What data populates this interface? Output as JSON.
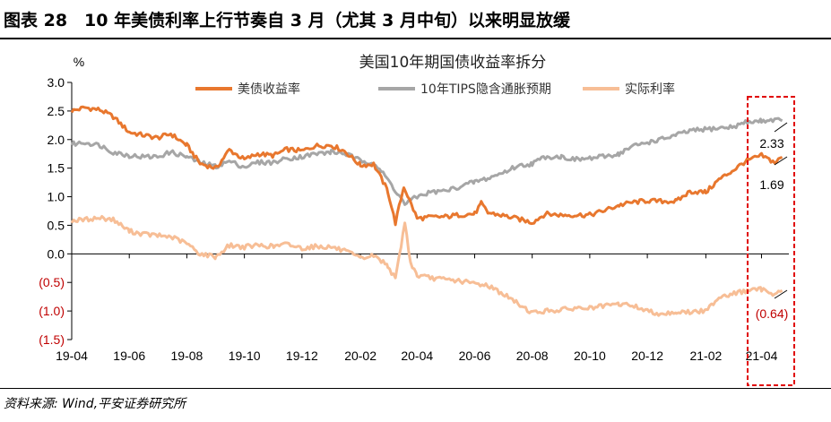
{
  "header": {
    "title": "图表 28　10 年美债利率上行节奏自 3 月（尤其 3 月中旬）以来明显放缓"
  },
  "footer": {
    "source": "资料来源: Wind,平安证券研究所"
  },
  "colors": {
    "nominal": "#E8772E",
    "breakeven": "#A6A6A6",
    "real": "#F7BE96",
    "negative_tick": "#C00000",
    "highlight_box": "#E00000"
  },
  "chart_data": {
    "type": "line",
    "title": "美国10年期国债收益率拆分",
    "ylabel": "%",
    "ylim": [
      -1.5,
      3.0
    ],
    "yticks": [
      3.0,
      2.5,
      2.0,
      1.5,
      1.0,
      0.5,
      0.0,
      -0.5,
      -1.0,
      -1.5
    ],
    "ytick_labels": [
      "3.0",
      "2.5",
      "2.0",
      "1.5",
      "1.0",
      "0.5",
      "0.0",
      "(0.5)",
      "(1.0)",
      "(1.5)"
    ],
    "xlim": [
      "2019-04-01",
      "2021-04-30"
    ],
    "xticks": [
      "2019-04-01",
      "2019-06-01",
      "2019-08-01",
      "2019-10-01",
      "2019-12-01",
      "2020-02-01",
      "2020-04-01",
      "2020-06-01",
      "2020-08-01",
      "2020-10-01",
      "2020-12-01",
      "2021-02-01",
      "2021-04-01"
    ],
    "xtick_labels": [
      "19-04",
      "19-06",
      "19-08",
      "19-10",
      "19-12",
      "20-02",
      "20-04",
      "20-06",
      "20-08",
      "20-10",
      "20-12",
      "21-02",
      "21-04"
    ],
    "legend": "top",
    "grid": false,
    "series": [
      {
        "name": "美债收益率",
        "color": "#E8772E",
        "points": [
          [
            "2019-04-01",
            2.5
          ],
          [
            "2019-04-15",
            2.56
          ],
          [
            "2019-05-01",
            2.52
          ],
          [
            "2019-05-15",
            2.4
          ],
          [
            "2019-06-01",
            2.13
          ],
          [
            "2019-06-15",
            2.08
          ],
          [
            "2019-07-01",
            2.03
          ],
          [
            "2019-07-15",
            2.1
          ],
          [
            "2019-08-01",
            1.9
          ],
          [
            "2019-08-15",
            1.58
          ],
          [
            "2019-09-01",
            1.5
          ],
          [
            "2019-09-15",
            1.82
          ],
          [
            "2019-10-01",
            1.65
          ],
          [
            "2019-10-15",
            1.75
          ],
          [
            "2019-11-01",
            1.72
          ],
          [
            "2019-11-15",
            1.83
          ],
          [
            "2019-12-01",
            1.8
          ],
          [
            "2019-12-15",
            1.89
          ],
          [
            "2020-01-01",
            1.9
          ],
          [
            "2020-01-15",
            1.8
          ],
          [
            "2020-02-01",
            1.55
          ],
          [
            "2020-02-15",
            1.57
          ],
          [
            "2020-03-01",
            1.1
          ],
          [
            "2020-03-09",
            0.54
          ],
          [
            "2020-03-18",
            1.18
          ],
          [
            "2020-04-01",
            0.62
          ],
          [
            "2020-04-15",
            0.64
          ],
          [
            "2020-05-01",
            0.65
          ],
          [
            "2020-05-15",
            0.68
          ],
          [
            "2020-06-01",
            0.7
          ],
          [
            "2020-06-08",
            0.88
          ],
          [
            "2020-06-15",
            0.72
          ],
          [
            "2020-07-01",
            0.67
          ],
          [
            "2020-07-15",
            0.62
          ],
          [
            "2020-08-01",
            0.55
          ],
          [
            "2020-08-15",
            0.7
          ],
          [
            "2020-09-01",
            0.68
          ],
          [
            "2020-09-15",
            0.68
          ],
          [
            "2020-10-01",
            0.68
          ],
          [
            "2020-10-15",
            0.75
          ],
          [
            "2020-11-01",
            0.85
          ],
          [
            "2020-11-15",
            0.9
          ],
          [
            "2020-12-01",
            0.93
          ],
          [
            "2020-12-15",
            0.92
          ],
          [
            "2021-01-01",
            0.92
          ],
          [
            "2021-01-15",
            1.09
          ],
          [
            "2021-02-01",
            1.08
          ],
          [
            "2021-02-15",
            1.3
          ],
          [
            "2021-03-01",
            1.45
          ],
          [
            "2021-03-15",
            1.62
          ],
          [
            "2021-04-01",
            1.72
          ],
          [
            "2021-04-15",
            1.6
          ],
          [
            "2021-04-23",
            1.69
          ]
        ]
      },
      {
        "name": "10年TIPS隐含通胀预期",
        "color": "#A6A6A6",
        "points": [
          [
            "2019-04-01",
            1.92
          ],
          [
            "2019-04-15",
            1.95
          ],
          [
            "2019-05-01",
            1.9
          ],
          [
            "2019-05-15",
            1.78
          ],
          [
            "2019-06-01",
            1.72
          ],
          [
            "2019-06-15",
            1.7
          ],
          [
            "2019-07-01",
            1.7
          ],
          [
            "2019-07-15",
            1.78
          ],
          [
            "2019-08-01",
            1.7
          ],
          [
            "2019-08-15",
            1.6
          ],
          [
            "2019-09-01",
            1.53
          ],
          [
            "2019-09-15",
            1.62
          ],
          [
            "2019-10-01",
            1.52
          ],
          [
            "2019-10-15",
            1.6
          ],
          [
            "2019-11-01",
            1.6
          ],
          [
            "2019-11-15",
            1.67
          ],
          [
            "2019-12-01",
            1.7
          ],
          [
            "2019-12-15",
            1.75
          ],
          [
            "2020-01-01",
            1.78
          ],
          [
            "2020-01-15",
            1.76
          ],
          [
            "2020-02-01",
            1.63
          ],
          [
            "2020-02-15",
            1.6
          ],
          [
            "2020-03-01",
            1.3
          ],
          [
            "2020-03-19",
            0.87
          ],
          [
            "2020-04-01",
            1.0
          ],
          [
            "2020-04-15",
            1.08
          ],
          [
            "2020-05-01",
            1.1
          ],
          [
            "2020-05-15",
            1.17
          ],
          [
            "2020-06-01",
            1.26
          ],
          [
            "2020-06-15",
            1.32
          ],
          [
            "2020-07-01",
            1.42
          ],
          [
            "2020-07-15",
            1.53
          ],
          [
            "2020-08-01",
            1.58
          ],
          [
            "2020-08-15",
            1.7
          ],
          [
            "2020-09-01",
            1.7
          ],
          [
            "2020-09-15",
            1.65
          ],
          [
            "2020-10-01",
            1.67
          ],
          [
            "2020-10-15",
            1.7
          ],
          [
            "2020-11-01",
            1.75
          ],
          [
            "2020-11-15",
            1.88
          ],
          [
            "2020-12-01",
            1.95
          ],
          [
            "2020-12-15",
            2.0
          ],
          [
            "2021-01-01",
            2.08
          ],
          [
            "2021-01-15",
            2.15
          ],
          [
            "2021-02-01",
            2.18
          ],
          [
            "2021-02-15",
            2.2
          ],
          [
            "2021-03-01",
            2.22
          ],
          [
            "2021-03-15",
            2.3
          ],
          [
            "2021-04-01",
            2.33
          ],
          [
            "2021-04-15",
            2.35
          ],
          [
            "2021-04-23",
            2.33
          ]
        ]
      },
      {
        "name": "实际利率",
        "color": "#F7BE96",
        "points": [
          [
            "2019-04-01",
            0.58
          ],
          [
            "2019-04-15",
            0.6
          ],
          [
            "2019-05-01",
            0.63
          ],
          [
            "2019-05-15",
            0.6
          ],
          [
            "2019-06-01",
            0.4
          ],
          [
            "2019-06-15",
            0.35
          ],
          [
            "2019-07-01",
            0.32
          ],
          [
            "2019-07-15",
            0.3
          ],
          [
            "2019-08-01",
            0.18
          ],
          [
            "2019-08-15",
            0.0
          ],
          [
            "2019-09-01",
            -0.05
          ],
          [
            "2019-09-15",
            0.15
          ],
          [
            "2019-10-01",
            0.12
          ],
          [
            "2019-10-15",
            0.15
          ],
          [
            "2019-11-01",
            0.13
          ],
          [
            "2019-11-15",
            0.17
          ],
          [
            "2019-12-01",
            0.1
          ],
          [
            "2019-12-15",
            0.13
          ],
          [
            "2020-01-01",
            0.12
          ],
          [
            "2020-01-15",
            0.05
          ],
          [
            "2020-02-01",
            -0.08
          ],
          [
            "2020-02-15",
            -0.03
          ],
          [
            "2020-03-01",
            -0.2
          ],
          [
            "2020-03-09",
            -0.45
          ],
          [
            "2020-03-19",
            0.55
          ],
          [
            "2020-03-25",
            -0.15
          ],
          [
            "2020-04-01",
            -0.38
          ],
          [
            "2020-04-15",
            -0.42
          ],
          [
            "2020-05-01",
            -0.45
          ],
          [
            "2020-05-15",
            -0.47
          ],
          [
            "2020-06-01",
            -0.52
          ],
          [
            "2020-06-15",
            -0.55
          ],
          [
            "2020-07-01",
            -0.7
          ],
          [
            "2020-07-15",
            -0.85
          ],
          [
            "2020-08-01",
            -1.03
          ],
          [
            "2020-08-15",
            -1.0
          ],
          [
            "2020-09-01",
            -0.98
          ],
          [
            "2020-09-15",
            -0.95
          ],
          [
            "2020-10-01",
            -0.95
          ],
          [
            "2020-10-15",
            -0.92
          ],
          [
            "2020-11-01",
            -0.88
          ],
          [
            "2020-11-15",
            -0.9
          ],
          [
            "2020-12-01",
            -1.0
          ],
          [
            "2020-12-15",
            -1.05
          ],
          [
            "2021-01-01",
            -1.02
          ],
          [
            "2021-01-15",
            -1.02
          ],
          [
            "2021-02-01",
            -1.0
          ],
          [
            "2021-02-15",
            -0.75
          ],
          [
            "2021-03-01",
            -0.7
          ],
          [
            "2021-03-15",
            -0.65
          ],
          [
            "2021-04-01",
            -0.62
          ],
          [
            "2021-04-15",
            -0.7
          ],
          [
            "2021-04-23",
            -0.64
          ]
        ]
      }
    ],
    "annotations": [
      {
        "series": "10年TIPS隐含通胀预期",
        "date": "2021-04-23",
        "label": "2.33",
        "color": "#000000"
      },
      {
        "series": "美债收益率",
        "date": "2021-04-23",
        "label": "1.69",
        "color": "#000000"
      },
      {
        "series": "实际利率",
        "date": "2021-04-23",
        "label": "(0.64)",
        "color": "#C00000"
      }
    ]
  }
}
